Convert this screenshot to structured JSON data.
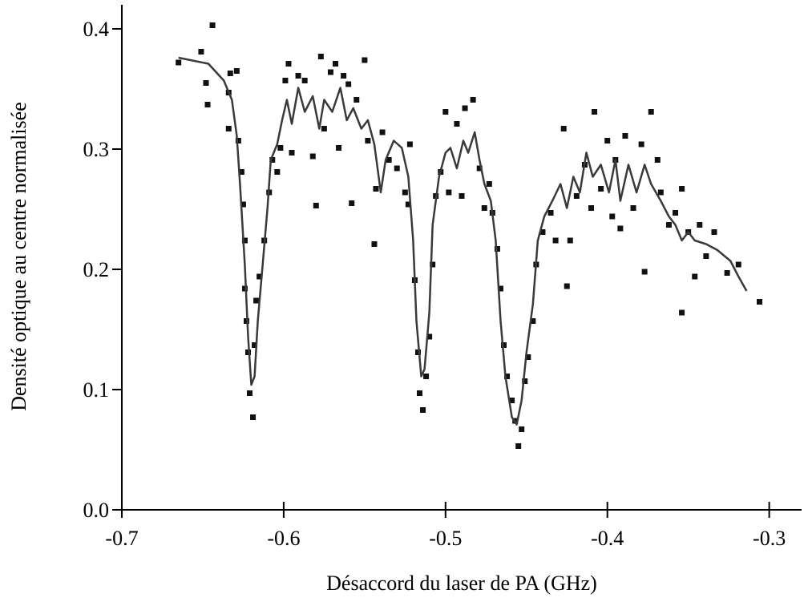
{
  "chart_data": {
    "type": "scatter",
    "xlabel": "Désaccord du laser de PA (GHz)",
    "ylabel": "Densité optique au centre normalisée",
    "xlim": [
      -0.7,
      -0.28
    ],
    "ylim": [
      0,
      0.42
    ],
    "xticks": [
      -0.7,
      -0.6,
      -0.5,
      -0.4,
      -0.3
    ],
    "yticks": [
      {
        "value": 0,
        "label": "0.0"
      },
      0.1,
      0.2,
      0.3,
      0.4
    ],
    "grid": false,
    "series": [
      {
        "type": "scatter",
        "color": "#111111",
        "x": [
          -0.665,
          -0.651,
          -0.644,
          -0.648,
          -0.647,
          -0.634,
          -0.633,
          -0.629,
          -0.634,
          -0.628,
          -0.626,
          -0.625,
          -0.624,
          -0.624,
          -0.623,
          -0.622,
          -0.621,
          -0.619,
          -0.618,
          -0.617,
          -0.615,
          -0.612,
          -0.609,
          -0.607,
          -0.604,
          -0.602,
          -0.599,
          -0.597,
          -0.595,
          -0.591,
          -0.587,
          -0.582,
          -0.58,
          -0.577,
          -0.575,
          -0.571,
          -0.568,
          -0.566,
          -0.563,
          -0.56,
          -0.558,
          -0.555,
          -0.55,
          -0.548,
          -0.544,
          -0.543,
          -0.539,
          -0.535,
          -0.53,
          -0.525,
          -0.522,
          -0.523,
          -0.519,
          -0.517,
          -0.516,
          -0.514,
          -0.512,
          -0.51,
          -0.508,
          -0.506,
          -0.503,
          -0.5,
          -0.498,
          -0.493,
          -0.49,
          -0.488,
          -0.483,
          -0.479,
          -0.476,
          -0.473,
          -0.471,
          -0.468,
          -0.466,
          -0.464,
          -0.462,
          -0.459,
          -0.457,
          -0.455,
          -0.453,
          -0.451,
          -0.449,
          -0.446,
          -0.444,
          -0.44,
          -0.435,
          -0.432,
          -0.427,
          -0.425,
          -0.423,
          -0.419,
          -0.414,
          -0.41,
          -0.408,
          -0.404,
          -0.4,
          -0.397,
          -0.395,
          -0.392,
          -0.389,
          -0.384,
          -0.379,
          -0.377,
          -0.373,
          -0.369,
          -0.367,
          -0.362,
          -0.358,
          -0.354,
          -0.354,
          -0.35,
          -0.346,
          -0.343,
          -0.339,
          -0.334,
          -0.326,
          -0.319,
          -0.306
        ],
        "y": [
          0.372,
          0.381,
          0.403,
          0.355,
          0.337,
          0.347,
          0.363,
          0.365,
          0.317,
          0.307,
          0.281,
          0.254,
          0.224,
          0.184,
          0.157,
          0.131,
          0.097,
          0.077,
          0.137,
          0.174,
          0.194,
          0.224,
          0.264,
          0.291,
          0.281,
          0.301,
          0.357,
          0.371,
          0.297,
          0.361,
          0.357,
          0.294,
          0.253,
          0.377,
          0.317,
          0.364,
          0.371,
          0.301,
          0.361,
          0.354,
          0.255,
          0.341,
          0.374,
          0.307,
          0.221,
          0.267,
          0.314,
          0.291,
          0.284,
          0.264,
          0.304,
          0.254,
          0.191,
          0.131,
          0.097,
          0.083,
          0.111,
          0.144,
          0.204,
          0.261,
          0.281,
          0.331,
          0.264,
          0.321,
          0.261,
          0.334,
          0.341,
          0.284,
          0.251,
          0.271,
          0.247,
          0.217,
          0.184,
          0.137,
          0.111,
          0.091,
          0.074,
          0.053,
          0.067,
          0.107,
          0.127,
          0.157,
          0.204,
          0.231,
          0.247,
          0.224,
          0.317,
          0.186,
          0.224,
          0.261,
          0.287,
          0.251,
          0.331,
          0.267,
          0.307,
          0.244,
          0.291,
          0.234,
          0.311,
          0.251,
          0.304,
          0.198,
          0.331,
          0.291,
          0.264,
          0.237,
          0.247,
          0.164,
          0.267,
          0.231,
          0.194,
          0.237,
          0.211,
          0.231,
          0.197,
          0.204,
          0.173
        ]
      },
      {
        "type": "line",
        "color": "#3a3a3a",
        "x": [
          -0.665,
          -0.6465,
          -0.637,
          -0.632,
          -0.629,
          -0.627,
          -0.624,
          -0.622,
          -0.62,
          -0.618,
          -0.616,
          -0.613,
          -0.61,
          -0.608,
          -0.604,
          -0.601,
          -0.598,
          -0.595,
          -0.591,
          -0.587,
          -0.582,
          -0.578,
          -0.575,
          -0.57,
          -0.565,
          -0.561,
          -0.557,
          -0.552,
          -0.548,
          -0.544,
          -0.54,
          -0.537,
          -0.532,
          -0.527,
          -0.523,
          -0.52,
          -0.518,
          -0.515,
          -0.513,
          -0.51,
          -0.508,
          -0.504,
          -0.5,
          -0.497,
          -0.493,
          -0.489,
          -0.486,
          -0.482,
          -0.479,
          -0.476,
          -0.472,
          -0.469,
          -0.466,
          -0.463,
          -0.459,
          -0.456,
          -0.453,
          -0.45,
          -0.446,
          -0.443,
          -0.439,
          -0.434,
          -0.429,
          -0.425,
          -0.421,
          -0.417,
          -0.413,
          -0.409,
          -0.404,
          -0.399,
          -0.395,
          -0.392,
          -0.387,
          -0.382,
          -0.377,
          -0.373,
          -0.367,
          -0.362,
          -0.358,
          -0.354,
          -0.35,
          -0.346,
          -0.339,
          -0.332,
          -0.324,
          -0.319,
          -0.314
        ],
        "y": [
          0.376,
          0.371,
          0.357,
          0.341,
          0.311,
          0.271,
          0.204,
          0.144,
          0.104,
          0.111,
          0.157,
          0.204,
          0.251,
          0.291,
          0.304,
          0.324,
          0.341,
          0.321,
          0.351,
          0.331,
          0.344,
          0.317,
          0.341,
          0.331,
          0.351,
          0.324,
          0.334,
          0.317,
          0.324,
          0.304,
          0.264,
          0.291,
          0.307,
          0.301,
          0.277,
          0.224,
          0.157,
          0.111,
          0.117,
          0.164,
          0.237,
          0.277,
          0.297,
          0.301,
          0.284,
          0.307,
          0.297,
          0.314,
          0.291,
          0.271,
          0.257,
          0.224,
          0.157,
          0.111,
          0.077,
          0.071,
          0.091,
          0.131,
          0.171,
          0.224,
          0.244,
          0.257,
          0.271,
          0.251,
          0.277,
          0.264,
          0.297,
          0.277,
          0.287,
          0.264,
          0.291,
          0.257,
          0.287,
          0.264,
          0.287,
          0.271,
          0.257,
          0.244,
          0.237,
          0.224,
          0.231,
          0.224,
          0.221,
          0.216,
          0.207,
          0.194,
          0.182
        ]
      }
    ]
  }
}
